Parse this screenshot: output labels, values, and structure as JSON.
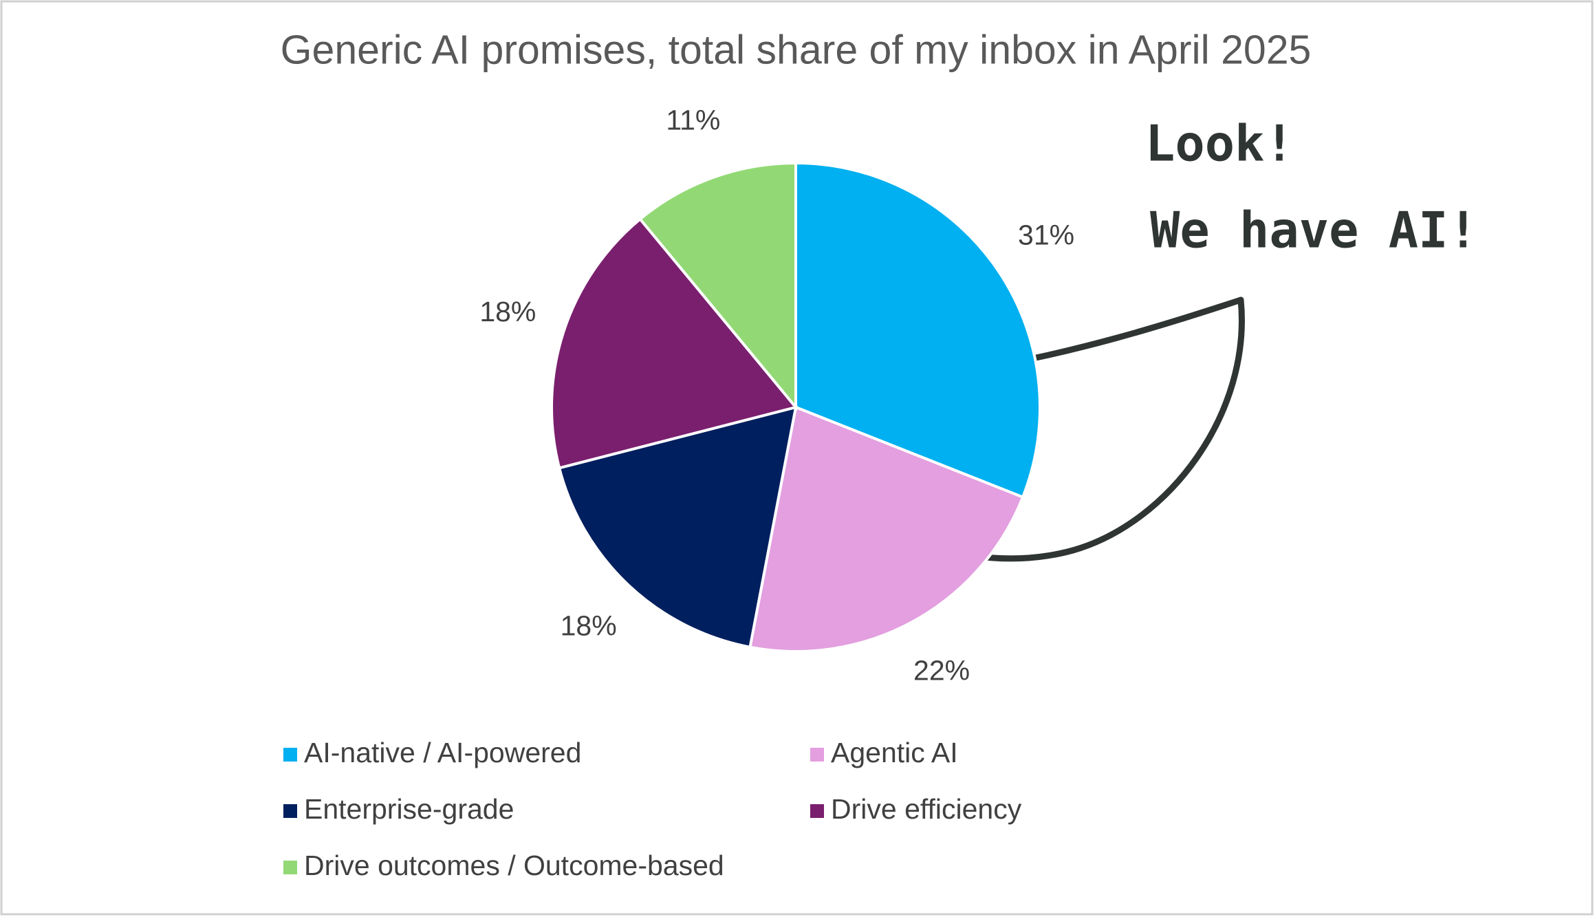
{
  "chart_data": {
    "type": "pie",
    "title": "Generic AI promises, total share of my inbox in April 2025",
    "categories": [
      "AI-native / AI-powered",
      "Agentic AI",
      "Enterprise-grade",
      "Drive efficiency",
      "Drive outcomes / Outcome-based"
    ],
    "values": [
      31,
      22,
      18,
      18,
      11
    ],
    "value_labels": [
      "31%",
      "22%",
      "18%",
      "18%",
      "11%"
    ],
    "colors": [
      "#00b0f0",
      "#e39fdf",
      "#001f5f",
      "#7a1f6e",
      "#92d975"
    ],
    "annotations": [
      "Look!",
      "We have AI!"
    ]
  }
}
